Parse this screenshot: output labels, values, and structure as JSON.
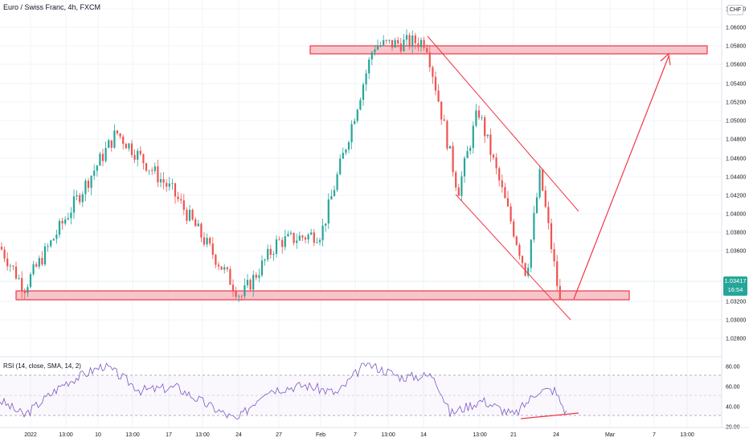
{
  "header": {
    "title": "Euro / Swiss Franc, 4h, FXCM"
  },
  "rsi": {
    "label": "RSI (14, close, SMA, 14, 2)"
  },
  "currency": "CHF",
  "last_price": {
    "value": "1.03417",
    "countdown": "16:54"
  },
  "colors": {
    "up": "#26a69a",
    "down": "#ef5350",
    "zone": "#f23645",
    "zone_fill": "#f7c6cb",
    "rsi_line": "#7e57c2"
  },
  "price_axis": [
    "1.06200",
    "1.06000",
    "1.05800",
    "1.05600",
    "1.05400",
    "1.05200",
    "1.05000",
    "1.04800",
    "1.04600",
    "1.04400",
    "1.04200",
    "1.04000",
    "1.03800",
    "1.03600",
    "1.03200",
    "1.03000",
    "1.02800"
  ],
  "rsi_axis": [
    "80.00",
    "60.00",
    "40.00",
    "20.00"
  ],
  "time_axis": [
    "2022",
    "13:00",
    "10",
    "13:00",
    "17",
    "13:00",
    "24",
    "27",
    "Feb",
    "7",
    "13:00",
    "14",
    "13:00",
    "21",
    "24",
    "Mar",
    "7",
    "13:00"
  ],
  "chart_data": {
    "type": "candlestick",
    "instrument": "Euro / Swiss Franc",
    "interval": "4h",
    "source": "FXCM",
    "y_range": [
      1.027,
      1.063
    ],
    "key_points": [
      {
        "t": "early Jan",
        "price": 1.038
      },
      {
        "t": "Jan 4",
        "price": 1.0335
      },
      {
        "t": "Jan 10",
        "price": 1.0505
      },
      {
        "t": "Jan 17",
        "price": 1.044
      },
      {
        "t": "Jan 24",
        "price": 1.0325
      },
      {
        "t": "Jan 27",
        "price": 1.0385
      },
      {
        "t": "Feb 3",
        "price": 1.0395
      },
      {
        "t": "Feb 7",
        "price": 1.06
      },
      {
        "t": "Feb 10",
        "price": 1.0605
      },
      {
        "t": "Feb 14",
        "price": 1.044
      },
      {
        "t": "Feb 17",
        "price": 1.053
      },
      {
        "t": "Feb 21",
        "price": 1.035
      },
      {
        "t": "Feb 22",
        "price": 1.046
      },
      {
        "t": "Feb 24",
        "price": 1.03
      },
      {
        "t": "last",
        "price": 1.03417
      }
    ],
    "resistance_zone": [
      1.059,
      1.06
    ],
    "support_zone": [
      1.0325,
      1.0337
    ],
    "rsi_levels": [
      70,
      50,
      30
    ],
    "rsi_range": [
      20,
      85
    ]
  }
}
